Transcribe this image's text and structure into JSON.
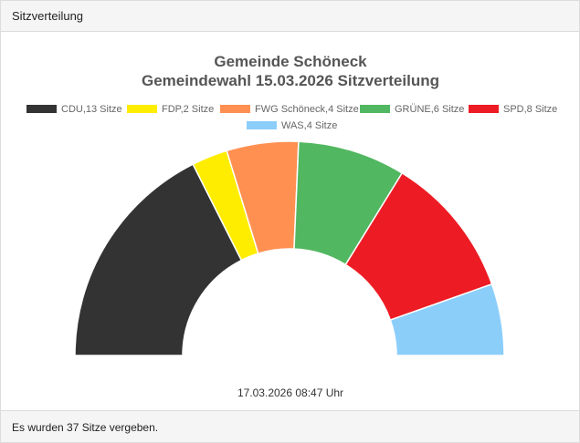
{
  "panel": {
    "title": "Sitzverteilung",
    "footer": "Es wurden 37 Sitze vergeben."
  },
  "chart_data": {
    "type": "pie",
    "variant": "semicircle-doughnut",
    "title": "Gemeinde Schöneck",
    "subtitle": "Gemeindewahl 15.03.2026 Sitzverteilung",
    "timestamp": "17.03.2026 08:47 Uhr",
    "legend_position": "top",
    "series": [
      {
        "name": "CDU,13 Sitze",
        "value": 13,
        "color": "#333333"
      },
      {
        "name": "FDP,2 Sitze",
        "value": 2,
        "color": "#ffed00"
      },
      {
        "name": "FWG Schöneck,4 Sitze",
        "value": 4,
        "color": "#ff9052"
      },
      {
        "name": "GRÜNE,6 Sitze",
        "value": 6,
        "color": "#52b761"
      },
      {
        "name": "SPD,8 Sitze",
        "value": 8,
        "color": "#ed1c24"
      },
      {
        "name": "WAS,4 Sitze",
        "value": 4,
        "color": "#8ccefa"
      }
    ]
  }
}
